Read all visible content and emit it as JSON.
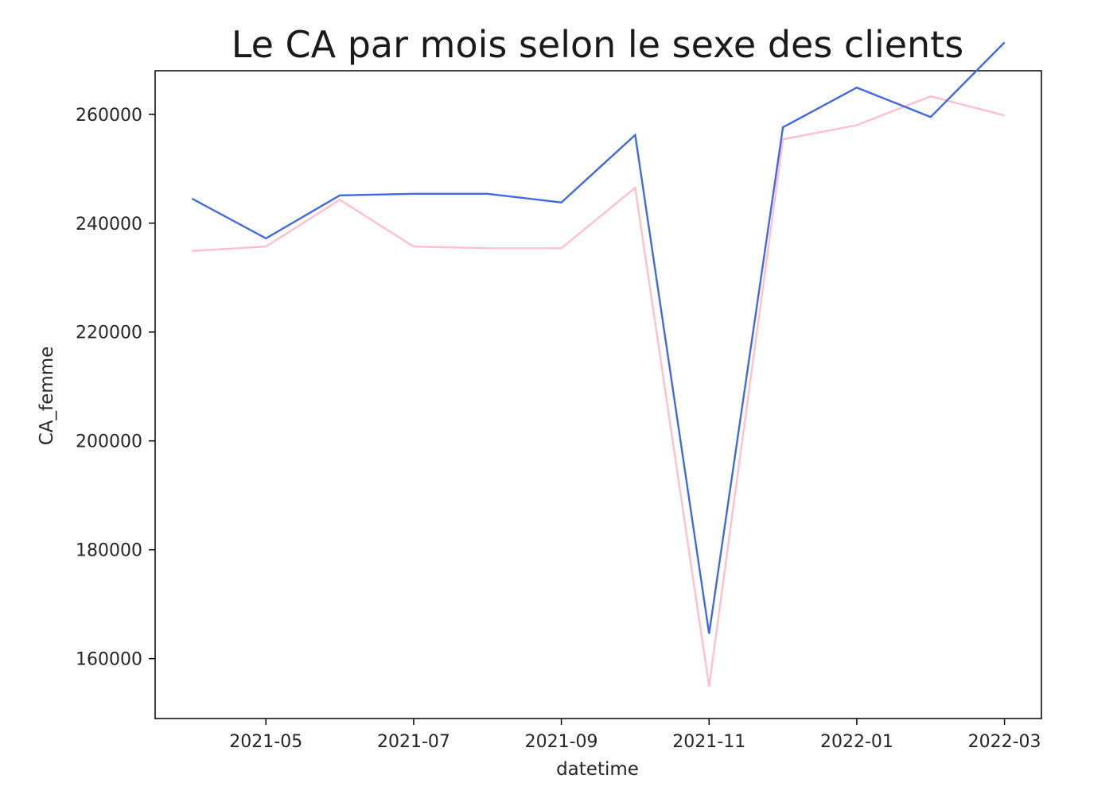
{
  "chart_data": {
    "type": "line",
    "title": "Le CA par mois selon le sexe des clients",
    "xlabel": "datetime",
    "ylabel": "CA_femme",
    "x": [
      "2021-04",
      "2021-05",
      "2021-06",
      "2021-07",
      "2021-08",
      "2021-09",
      "2021-10",
      "2021-11",
      "2021-12",
      "2022-01",
      "2022-02",
      "2022-03"
    ],
    "xticks": [
      "2021-05",
      "2021-07",
      "2021-09",
      "2021-11",
      "2022-01",
      "2022-03"
    ],
    "yticks": [
      160000,
      180000,
      200000,
      220000,
      240000,
      260000
    ],
    "ytick_labels": [
      "160000",
      "180000",
      "200000",
      "220000",
      "240000",
      "260000"
    ],
    "ylim": [
      149000,
      268000
    ],
    "grid": false,
    "series": [
      {
        "color": "#4169e1",
        "values": [
          244500,
          237200,
          245100,
          245400,
          245400,
          243800,
          256200,
          164600,
          257600,
          264900,
          259500,
          273200
        ]
      },
      {
        "color": "#ffc0cb",
        "values": [
          234900,
          235700,
          244300,
          235700,
          235400,
          235400,
          246500,
          154900,
          255400,
          258000,
          263300,
          259800
        ]
      }
    ]
  }
}
